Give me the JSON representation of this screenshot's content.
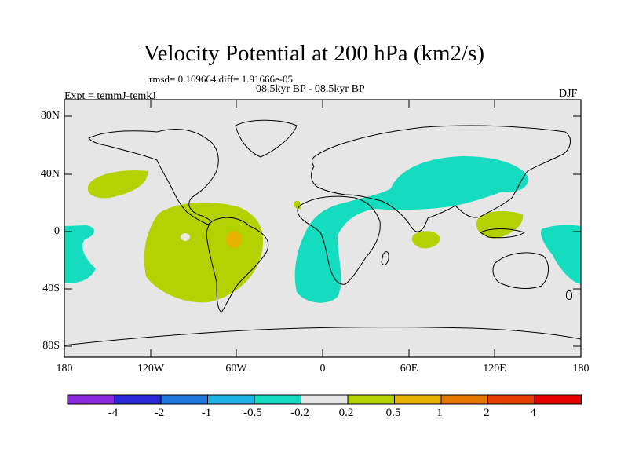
{
  "title": "Velocity Potential at 200 hPa (km2/s)",
  "stats": "rmsd= 0.169664 diff= 1.91666e-05",
  "period": "08.5kyr BP - 08.5kyr BP",
  "expt": "Expt = temmJ-temkJ",
  "season": "DJF",
  "axes": {
    "lat_labels": [
      "80N",
      "40N",
      "0",
      "40S",
      "80S"
    ],
    "lon_labels": [
      "180",
      "120W",
      "60W",
      "0",
      "60E",
      "120E",
      "180"
    ]
  },
  "colorbar": {
    "colors": [
      "#8a2be2",
      "#2828d8",
      "#1e78dc",
      "#1eb4e6",
      "#14dcbe",
      "#e6e6e6",
      "#b4d200",
      "#e6b400",
      "#e67800",
      "#e63c00",
      "#e60000"
    ],
    "labels": [
      "-4",
      "-2",
      "-1",
      "-0.5",
      "-0.2",
      "0.2",
      "0.5",
      "1",
      "2",
      "4"
    ]
  },
  "map_colors": {
    "ocean": "#e6e6e6",
    "positive": "#b4d200",
    "strong_positive": "#e6b400",
    "negative": "#14dcbe"
  }
}
